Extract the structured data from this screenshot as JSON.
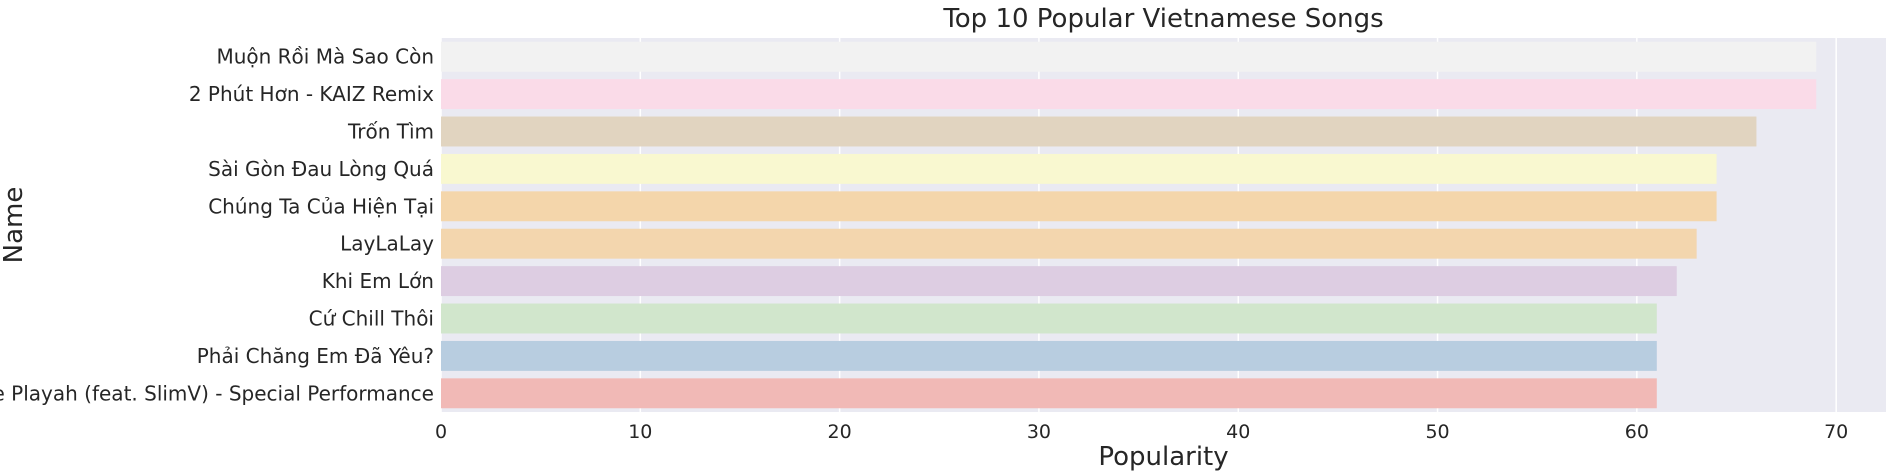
{
  "chart_data": {
    "type": "bar",
    "orientation": "horizontal",
    "title": "Top 10 Popular Vietnamese Songs",
    "xlabel": "Popularity",
    "ylabel": "Name",
    "xlim": [
      0,
      72.5
    ],
    "xticks": [
      0,
      10,
      20,
      30,
      40,
      50,
      60,
      70
    ],
    "grid": true,
    "categories": [
      "Muộn Rồi Mà Sao Còn",
      "2 Phút Hơn - KAIZ Remix",
      "Trốn Tìm",
      "Sài Gòn Đau Lòng Quá",
      "Chúng Ta Của Hiện Tại",
      "LayLaLay",
      "Khi Em Lớn",
      "Cứ Chill Thôi",
      "Phải Chăng Em Đã Yêu?",
      "The Playah (feat. SlimV) - Special Performance"
    ],
    "values": [
      69,
      69,
      66,
      64,
      64,
      63,
      62,
      61,
      61,
      61
    ],
    "colors": [
      "#f2f2f2",
      "#fadbe8",
      "#e1d4c0",
      "#f9f8d0",
      "#f4d6ab",
      "#f3d6ae",
      "#ddcde2",
      "#d1e6cc",
      "#b8cde0",
      "#f1b9b6"
    ],
    "background_color": "#eaeaf2",
    "grid_color": "#ffffff"
  }
}
